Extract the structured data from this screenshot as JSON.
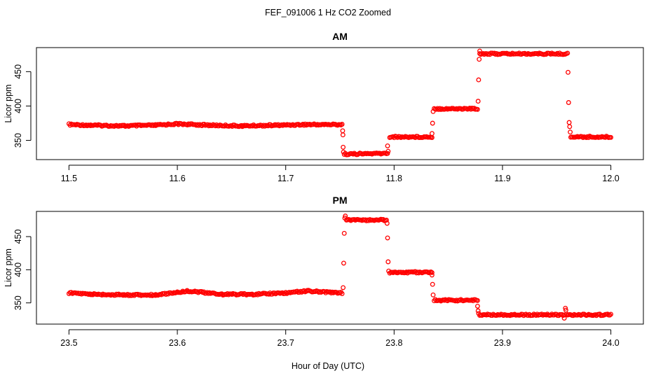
{
  "figure": {
    "title": "FEF_091006  1 Hz CO2 Zoomed",
    "xlabel": "Hour of Day (UTC)"
  },
  "colors": {
    "points": "#ff0000",
    "axis": "#000000"
  },
  "chart_data": [
    {
      "type": "scatter",
      "title": "AM",
      "xlabel": "Hour of Day (UTC)",
      "ylabel": "Licor ppm",
      "xlim": [
        11.47,
        12.03
      ],
      "ylim": [
        322,
        485
      ],
      "xticks": [
        "11.5",
        "11.6",
        "11.7",
        "11.8",
        "11.9",
        "12.0"
      ],
      "yticks": [
        "350",
        "400",
        "450"
      ],
      "grid": false,
      "marker": "open-circle",
      "segments": [
        {
          "x": [
            11.5,
            11.52,
            11.55,
            11.58,
            11.6,
            11.63,
            11.66,
            11.69,
            11.72,
            11.752
          ],
          "y": [
            373,
            372,
            371,
            372,
            374,
            372,
            371,
            372,
            373,
            373
          ]
        },
        {
          "x": [
            11.754,
            11.794
          ],
          "y": [
            330,
            331
          ]
        },
        {
          "x": [
            11.796,
            11.835
          ],
          "y": [
            355,
            355
          ]
        },
        {
          "x": [
            11.837,
            11.877
          ],
          "y": [
            396,
            396
          ]
        },
        {
          "x": [
            11.879,
            11.96
          ],
          "y": [
            476,
            476
          ]
        },
        {
          "x": [
            11.963,
            12.0
          ],
          "y": [
            355,
            355
          ]
        }
      ],
      "outliers": {
        "x": [
          11.7525,
          11.7528,
          11.753,
          11.7533,
          11.794,
          11.7945,
          11.835,
          11.8355,
          11.836,
          11.8775,
          11.878,
          11.8785,
          11.879,
          11.9605,
          11.961,
          11.9615,
          11.962,
          11.9625
        ],
        "y": [
          364,
          358,
          340,
          333,
          342,
          334,
          360,
          375,
          392,
          407,
          438,
          468,
          480,
          449,
          405,
          376,
          370,
          362
        ]
      }
    },
    {
      "type": "scatter",
      "title": "PM",
      "xlabel": "Hour of Day (UTC)",
      "ylabel": "Licor ppm",
      "xlim": [
        23.47,
        24.03
      ],
      "ylim": [
        318,
        488
      ],
      "xticks": [
        "23.5",
        "23.6",
        "23.7",
        "23.8",
        "23.9",
        "24.0"
      ],
      "yticks": [
        "350",
        "400",
        "450"
      ],
      "grid": false,
      "marker": "open-circle",
      "segments": [
        {
          "x": [
            23.5,
            23.52,
            23.55,
            23.58,
            23.6,
            23.61,
            23.64,
            23.67,
            23.7,
            23.72,
            23.74,
            23.752
          ],
          "y": [
            365,
            363,
            362,
            362,
            366,
            368,
            363,
            363,
            365,
            368,
            366,
            365
          ]
        },
        {
          "x": [
            23.756,
            23.793
          ],
          "y": [
            475,
            475
          ]
        },
        {
          "x": [
            23.796,
            23.835
          ],
          "y": [
            396,
            396
          ]
        },
        {
          "x": [
            23.837,
            23.877
          ],
          "y": [
            354,
            354
          ]
        },
        {
          "x": [
            23.879,
            23.957
          ],
          "y": [
            332,
            332
          ]
        },
        {
          "x": [
            23.959,
            24.0
          ],
          "y": [
            332,
            332
          ]
        }
      ],
      "outliers": {
        "x": [
          23.753,
          23.7535,
          23.754,
          23.7545,
          23.755,
          23.7935,
          23.794,
          23.7945,
          23.795,
          23.835,
          23.8355,
          23.836,
          23.877,
          23.8775,
          23.878,
          23.957,
          23.958,
          23.9585
        ],
        "y": [
          373,
          410,
          455,
          478,
          481,
          470,
          448,
          412,
          398,
          392,
          378,
          362,
          345,
          338,
          334,
          327,
          342,
          339
        ]
      }
    }
  ]
}
